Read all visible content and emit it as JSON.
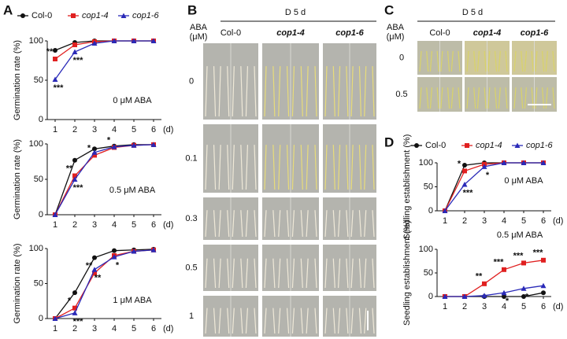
{
  "panel_labels": [
    "A",
    "B",
    "C",
    "D"
  ],
  "photo_b": {
    "header": "D 5 d",
    "row_title": [
      "ABA",
      "(μM)"
    ],
    "columns": [
      "Col-0",
      "cop1-4",
      "cop1-6"
    ],
    "rows": [
      "0",
      "0.1",
      "0.3",
      "0.5",
      "1"
    ]
  },
  "photo_c": {
    "header": "D 5 d",
    "row_title": [
      "ABA",
      "(μM)"
    ],
    "columns": [
      "Col-0",
      "cop1-4",
      "cop1-6"
    ],
    "rows": [
      "0",
      "0.5"
    ]
  },
  "chart_data": [
    {
      "type": "line",
      "ylabel": "Germination rate (%)",
      "xlabel": "(d)",
      "note": "0 μM ABA",
      "legend": true,
      "x": [
        1,
        2,
        3,
        4,
        5,
        6
      ],
      "xlim": [
        0.6,
        6.4
      ],
      "xticks": [
        1,
        2,
        3,
        4,
        5,
        6
      ],
      "ylim": [
        0,
        100
      ],
      "yticks": [
        0,
        50,
        100
      ],
      "series": [
        {
          "name": "Col-0",
          "color": "#111111",
          "marker": "circle",
          "values": [
            88,
            98,
            100,
            100,
            100,
            100
          ]
        },
        {
          "name": "cop1-4",
          "color": "#e02020",
          "marker": "square",
          "values": [
            77,
            95,
            99,
            100,
            100,
            100
          ]
        },
        {
          "name": "cop1-6",
          "color": "#2a2ab8",
          "marker": "triangle",
          "values": [
            51,
            86,
            97,
            100,
            100,
            100
          ]
        }
      ],
      "annotations": [
        {
          "text": "**",
          "series": 1,
          "index": 0
        },
        {
          "text": "***",
          "series": 2,
          "index": 0
        },
        {
          "text": "***",
          "series": 2,
          "index": 1
        }
      ]
    },
    {
      "type": "line",
      "ylabel": "Germination rate (%)",
      "xlabel": "(d)",
      "note": "0.5 μM ABA",
      "x": [
        1,
        2,
        3,
        4,
        5,
        6
      ],
      "xlim": [
        0.6,
        6.4
      ],
      "xticks": [
        1,
        2,
        3,
        4,
        5,
        6
      ],
      "ylim": [
        0,
        100
      ],
      "yticks": [
        0,
        50,
        100
      ],
      "series": [
        {
          "color": "#111111",
          "marker": "circle",
          "values": [
            0,
            77,
            93,
            97,
            99,
            99
          ]
        },
        {
          "color": "#e02020",
          "marker": "square",
          "values": [
            0,
            55,
            84,
            95,
            98,
            99
          ]
        },
        {
          "color": "#2a2ab8",
          "marker": "triangle",
          "values": [
            0,
            50,
            88,
            96,
            98,
            99
          ]
        }
      ],
      "annotations": [
        {
          "text": "**",
          "series": 1,
          "index": 1
        },
        {
          "text": "***",
          "series": 2,
          "index": 1
        },
        {
          "text": "*",
          "series": 1,
          "index": 2
        },
        {
          "text": "*",
          "series": 1,
          "index": 3
        }
      ]
    },
    {
      "type": "line",
      "ylabel": "Germination rate (%)",
      "xlabel": "(d)",
      "note": "1 μM ABA",
      "x": [
        1,
        2,
        3,
        4,
        5,
        6
      ],
      "xlim": [
        0.6,
        6.4
      ],
      "xticks": [
        1,
        2,
        3,
        4,
        5,
        6
      ],
      "ylim": [
        0,
        100
      ],
      "yticks": [
        0,
        50,
        100
      ],
      "series": [
        {
          "color": "#111111",
          "marker": "circle",
          "values": [
            0,
            37,
            87,
            97,
            98,
            99
          ]
        },
        {
          "color": "#e02020",
          "marker": "square",
          "values": [
            0,
            15,
            65,
            90,
            96,
            98
          ]
        },
        {
          "color": "#2a2ab8",
          "marker": "triangle",
          "values": [
            0,
            8,
            70,
            88,
            96,
            98
          ]
        }
      ],
      "annotations": [
        {
          "text": "*",
          "series": 1,
          "index": 1
        },
        {
          "text": "***",
          "series": 2,
          "index": 1
        },
        {
          "text": "**",
          "series": 1,
          "index": 2
        },
        {
          "text": "**",
          "series": 2,
          "index": 2
        },
        {
          "text": "*",
          "series": 2,
          "index": 3
        }
      ]
    },
    {
      "type": "line",
      "ylabel": "Seedling establishment (%)",
      "xlabel": "(d)",
      "note": "0 μM ABA",
      "legend": true,
      "x": [
        1,
        2,
        3,
        4,
        5,
        6
      ],
      "xlim": [
        0.6,
        6.4
      ],
      "xticks": [
        1,
        2,
        3,
        4,
        5,
        6
      ],
      "ylim": [
        0,
        100
      ],
      "yticks": [
        0,
        50,
        100
      ],
      "series": [
        {
          "name": "Col-0",
          "color": "#111111",
          "marker": "circle",
          "values": [
            0,
            95,
            100,
            100,
            100,
            100
          ]
        },
        {
          "name": "cop1-4",
          "color": "#e02020",
          "marker": "square",
          "values": [
            0,
            83,
            97,
            100,
            100,
            100
          ]
        },
        {
          "name": "cop1-6",
          "color": "#2a2ab8",
          "marker": "triangle",
          "values": [
            0,
            55,
            92,
            100,
            100,
            100
          ]
        }
      ],
      "annotations": [
        {
          "text": "*",
          "series": 1,
          "index": 1
        },
        {
          "text": "***",
          "series": 2,
          "index": 1
        },
        {
          "text": "*",
          "series": 2,
          "index": 2
        }
      ]
    },
    {
      "type": "line",
      "ylabel": "Seedling establishment (%)",
      "xlabel": "(d)",
      "note": "0.5 μM ABA",
      "x": [
        1,
        2,
        3,
        4,
        5,
        6
      ],
      "xlim": [
        0.6,
        6.4
      ],
      "xticks": [
        1,
        2,
        3,
        4,
        5,
        6
      ],
      "ylim": [
        0,
        100
      ],
      "yticks": [
        0,
        50,
        100
      ],
      "series": [
        {
          "color": "#111111",
          "marker": "circle",
          "values": [
            0,
            0,
            0,
            0,
            0,
            8
          ]
        },
        {
          "color": "#e02020",
          "marker": "square",
          "values": [
            0,
            0,
            27,
            57,
            71,
            77
          ]
        },
        {
          "color": "#2a2ab8",
          "marker": "triangle",
          "values": [
            0,
            0,
            2,
            8,
            17,
            23
          ]
        }
      ],
      "annotations": [
        {
          "text": "**",
          "series": 1,
          "index": 2
        },
        {
          "text": "***",
          "series": 1,
          "index": 3
        },
        {
          "text": "***",
          "series": 1,
          "index": 4
        },
        {
          "text": "***",
          "series": 1,
          "index": 5
        },
        {
          "text": "*",
          "series": 2,
          "index": 3
        },
        {
          "text": "*",
          "series": 2,
          "index": 4
        }
      ]
    }
  ]
}
